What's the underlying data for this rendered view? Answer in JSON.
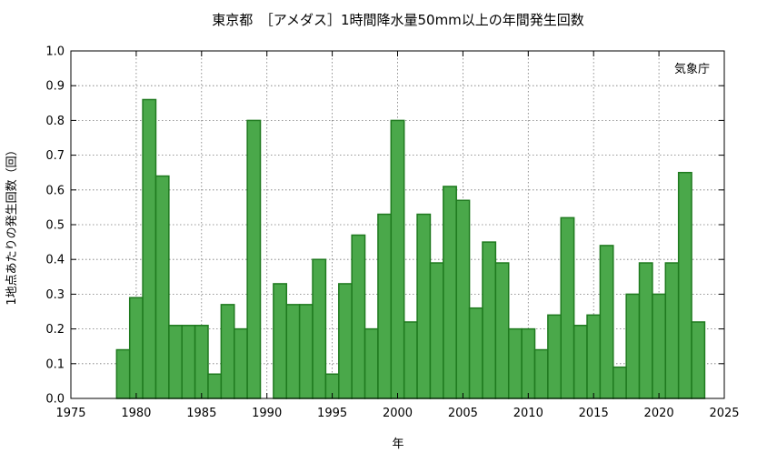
{
  "chart_data": {
    "type": "bar",
    "title": "東京都　［アメダス］1時間降水量50mm以上の年間発生回数",
    "xlabel": "年",
    "ylabel": "1地点あたりの発生回数（回）",
    "annotation": "気象庁",
    "xlim": [
      1975,
      2025
    ],
    "ylim": [
      0,
      1.0
    ],
    "xticks": [
      1975,
      1980,
      1985,
      1990,
      1995,
      2000,
      2005,
      2010,
      2015,
      2020,
      2025
    ],
    "yticks": [
      "0.0",
      "0.1",
      "0.2",
      "0.3",
      "0.4",
      "0.5",
      "0.6",
      "0.7",
      "0.8",
      "0.9",
      "1.0"
    ],
    "grid": true,
    "bar_color": "#4aa84a",
    "bar_edge_color": "#1f7a1f",
    "x": [
      1979,
      1980,
      1981,
      1982,
      1983,
      1984,
      1985,
      1986,
      1987,
      1988,
      1989,
      1991,
      1992,
      1993,
      1994,
      1995,
      1996,
      1997,
      1998,
      1999,
      2000,
      2001,
      2002,
      2003,
      2004,
      2005,
      2006,
      2007,
      2008,
      2009,
      2010,
      2011,
      2012,
      2013,
      2014,
      2015,
      2016,
      2017,
      2018,
      2019,
      2020,
      2021,
      2022,
      2023
    ],
    "values": [
      0.14,
      0.29,
      0.86,
      0.64,
      0.21,
      0.21,
      0.21,
      0.07,
      0.27,
      0.2,
      0.8,
      0.33,
      0.27,
      0.27,
      0.4,
      0.07,
      0.33,
      0.47,
      0.2,
      0.53,
      0.8,
      0.22,
      0.53,
      0.39,
      0.61,
      0.57,
      0.26,
      0.45,
      0.39,
      0.2,
      0.2,
      0.14,
      0.24,
      0.52,
      0.21,
      0.24,
      0.44,
      0.09,
      0.3,
      0.39,
      0.3,
      0.39,
      0.65,
      0.22
    ]
  }
}
